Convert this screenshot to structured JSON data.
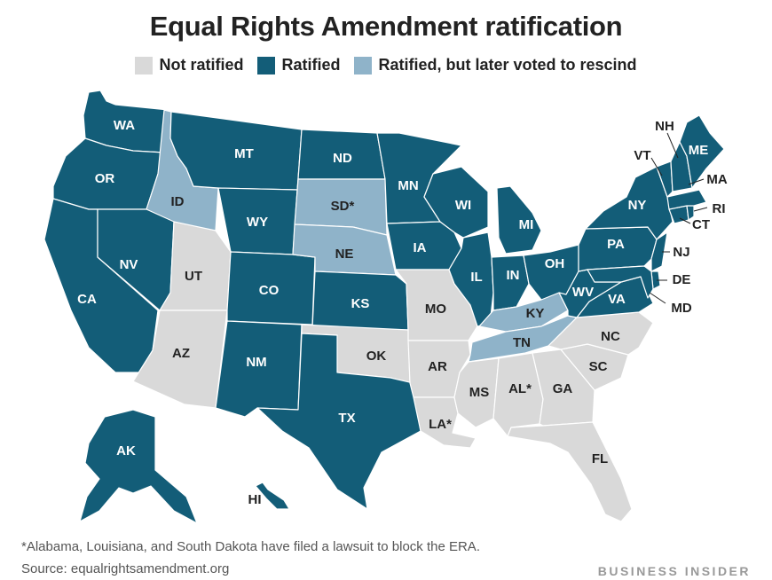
{
  "title": "Equal Rights Amendment ratification",
  "colors": {
    "not_ratified": "#d9d9d9",
    "ratified": "#135d78",
    "rescinded": "#8fb3c9"
  },
  "legend": [
    {
      "key": "not_ratified",
      "label": "Not ratified"
    },
    {
      "key": "ratified",
      "label": "Ratified"
    },
    {
      "key": "rescinded",
      "label": "Ratified, but later voted to rescind"
    }
  ],
  "states": {
    "WA": {
      "label": "WA",
      "status": "ratified"
    },
    "OR": {
      "label": "OR",
      "status": "ratified"
    },
    "CA": {
      "label": "CA",
      "status": "ratified"
    },
    "ID": {
      "label": "ID",
      "status": "rescinded"
    },
    "NV": {
      "label": "NV",
      "status": "ratified"
    },
    "MT": {
      "label": "MT",
      "status": "ratified"
    },
    "WY": {
      "label": "WY",
      "status": "ratified"
    },
    "UT": {
      "label": "UT",
      "status": "not_ratified"
    },
    "AZ": {
      "label": "AZ",
      "status": "not_ratified"
    },
    "CO": {
      "label": "CO",
      "status": "ratified"
    },
    "NM": {
      "label": "NM",
      "status": "ratified"
    },
    "ND": {
      "label": "ND",
      "status": "ratified"
    },
    "SD": {
      "label": "SD*",
      "status": "rescinded"
    },
    "NE": {
      "label": "NE",
      "status": "rescinded"
    },
    "KS": {
      "label": "KS",
      "status": "ratified"
    },
    "OK": {
      "label": "OK",
      "status": "not_ratified"
    },
    "TX": {
      "label": "TX",
      "status": "ratified"
    },
    "MN": {
      "label": "MN",
      "status": "ratified"
    },
    "IA": {
      "label": "IA",
      "status": "ratified"
    },
    "MO": {
      "label": "MO",
      "status": "not_ratified"
    },
    "AR": {
      "label": "AR",
      "status": "not_ratified"
    },
    "LA": {
      "label": "LA*",
      "status": "not_ratified"
    },
    "WI": {
      "label": "WI",
      "status": "ratified"
    },
    "IL": {
      "label": "IL",
      "status": "ratified"
    },
    "MI": {
      "label": "MI",
      "status": "ratified"
    },
    "IN": {
      "label": "IN",
      "status": "ratified"
    },
    "OH": {
      "label": "OH",
      "status": "ratified"
    },
    "KY": {
      "label": "KY",
      "status": "rescinded"
    },
    "TN": {
      "label": "TN",
      "status": "rescinded"
    },
    "MS": {
      "label": "MS",
      "status": "not_ratified"
    },
    "AL": {
      "label": "AL*",
      "status": "not_ratified"
    },
    "GA": {
      "label": "GA",
      "status": "not_ratified"
    },
    "FL": {
      "label": "FL",
      "status": "not_ratified"
    },
    "SC": {
      "label": "SC",
      "status": "not_ratified"
    },
    "NC": {
      "label": "NC",
      "status": "not_ratified"
    },
    "VA": {
      "label": "VA",
      "status": "ratified"
    },
    "WV": {
      "label": "WV",
      "status": "ratified"
    },
    "PA": {
      "label": "PA",
      "status": "ratified"
    },
    "NY": {
      "label": "NY",
      "status": "ratified"
    },
    "NJ": {
      "label": "NJ",
      "status": "ratified"
    },
    "DE": {
      "label": "DE",
      "status": "ratified"
    },
    "MD": {
      "label": "MD",
      "status": "ratified"
    },
    "CT": {
      "label": "CT",
      "status": "ratified"
    },
    "RI": {
      "label": "RI",
      "status": "ratified"
    },
    "MA": {
      "label": "MA",
      "status": "ratified"
    },
    "VT": {
      "label": "VT",
      "status": "ratified"
    },
    "NH": {
      "label": "NH",
      "status": "ratified"
    },
    "ME": {
      "label": "ME",
      "status": "ratified"
    },
    "AK": {
      "label": "AK",
      "status": "ratified"
    },
    "HI": {
      "label": "HI",
      "status": "ratified"
    }
  },
  "footnote": "*Alabama, Louisiana, and South Dakota have filed a lawsuit to block the ERA.",
  "source_label": "Source:",
  "source_text": "equalrightsamendment.org",
  "brand": "BUSINESS INSIDER"
}
